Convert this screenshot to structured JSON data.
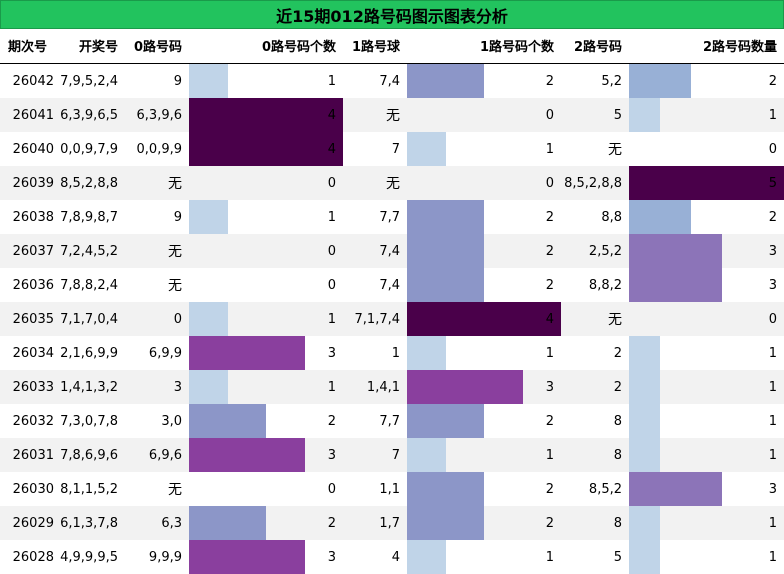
{
  "title": "近15期012路号码图示图表分析",
  "headers": {
    "period": "期次号",
    "draw": "开奖号",
    "route0": "0路号码",
    "route0_count": "0路号码个数",
    "route1": "1路号球",
    "route1_count": "1路号码个数",
    "route2": "2路号码",
    "route2_count": "2路号码数量"
  },
  "colors": {
    "title_bg": "#22c35e",
    "count_1": "#c0d4e8",
    "count_2": "#8c96c8",
    "count_3": "#8a3f9e",
    "count_4": "#4a004a",
    "count_5": "#4a004a",
    "r2_count_1": "#c0d4e8",
    "r2_count_2": "#98b0d6",
    "r2_count_3": "#8c74b8",
    "r2_count_5": "#4a004a"
  },
  "rows": [
    {
      "period": "26042",
      "draw": "7,9,5,2,4",
      "r0": "9",
      "r0_count": 1,
      "r1": "7,4",
      "r1_count": 2,
      "r2": "5,2",
      "r2_count": 2
    },
    {
      "period": "26041",
      "draw": "6,3,9,6,5",
      "r0": "6,3,9,6",
      "r0_count": 4,
      "r1": "无",
      "r1_count": 0,
      "r2": "5",
      "r2_count": 1
    },
    {
      "period": "26040",
      "draw": "0,0,9,7,9",
      "r0": "0,0,9,9",
      "r0_count": 4,
      "r1": "7",
      "r1_count": 1,
      "r2": "无",
      "r2_count": 0
    },
    {
      "period": "26039",
      "draw": "8,5,2,8,8",
      "r0": "无",
      "r0_count": 0,
      "r1": "无",
      "r1_count": 0,
      "r2": "8,5,2,8,8",
      "r2_count": 5
    },
    {
      "period": "26038",
      "draw": "7,8,9,8,7",
      "r0": "9",
      "r0_count": 1,
      "r1": "7,7",
      "r1_count": 2,
      "r2": "8,8",
      "r2_count": 2
    },
    {
      "period": "26037",
      "draw": "7,2,4,5,2",
      "r0": "无",
      "r0_count": 0,
      "r1": "7,4",
      "r1_count": 2,
      "r2": "2,5,2",
      "r2_count": 3
    },
    {
      "period": "26036",
      "draw": "7,8,8,2,4",
      "r0": "无",
      "r0_count": 0,
      "r1": "7,4",
      "r1_count": 2,
      "r2": "8,8,2",
      "r2_count": 3
    },
    {
      "period": "26035",
      "draw": "7,1,7,0,4",
      "r0": "0",
      "r0_count": 1,
      "r1": "7,1,7,4",
      "r1_count": 4,
      "r2": "无",
      "r2_count": 0
    },
    {
      "period": "26034",
      "draw": "2,1,6,9,9",
      "r0": "6,9,9",
      "r0_count": 3,
      "r1": "1",
      "r1_count": 1,
      "r2": "2",
      "r2_count": 1
    },
    {
      "period": "26033",
      "draw": "1,4,1,3,2",
      "r0": "3",
      "r0_count": 1,
      "r1": "1,4,1",
      "r1_count": 3,
      "r2": "2",
      "r2_count": 1
    },
    {
      "period": "26032",
      "draw": "7,3,0,7,8",
      "r0": "3,0",
      "r0_count": 2,
      "r1": "7,7",
      "r1_count": 2,
      "r2": "8",
      "r2_count": 1
    },
    {
      "period": "26031",
      "draw": "7,8,6,9,6",
      "r0": "6,9,6",
      "r0_count": 3,
      "r1": "7",
      "r1_count": 1,
      "r2": "8",
      "r2_count": 1
    },
    {
      "period": "26030",
      "draw": "8,1,1,5,2",
      "r0": "无",
      "r0_count": 0,
      "r1": "1,1",
      "r1_count": 2,
      "r2": "8,5,2",
      "r2_count": 3
    },
    {
      "period": "26029",
      "draw": "6,1,3,7,8",
      "r0": "6,3",
      "r0_count": 2,
      "r1": "1,7",
      "r1_count": 2,
      "r2": "8",
      "r2_count": 1
    },
    {
      "period": "26028",
      "draw": "4,9,9,9,5",
      "r0": "9,9,9",
      "r0_count": 3,
      "r1": "4",
      "r1_count": 1,
      "r2": "5",
      "r2_count": 1
    }
  ]
}
